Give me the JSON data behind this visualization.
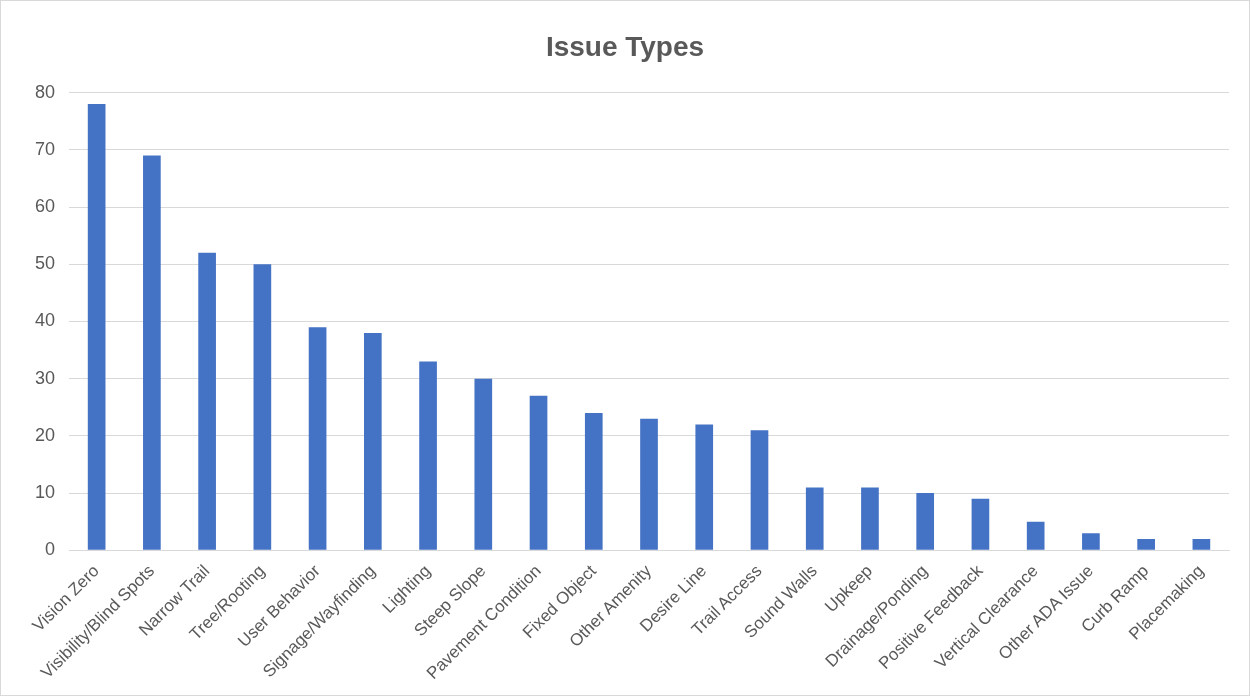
{
  "chart_data": {
    "type": "bar",
    "title": "Issue Types",
    "categories": [
      "Vision Zero",
      "Visibility/Blind Spots",
      "Narrow Trail",
      "Tree/Rooting",
      "User Behavior",
      "Signage/Wayfinding",
      "Lighting",
      "Steep Slope",
      "Pavement Condition",
      "Fixed Object",
      "Other Amenity",
      "Desire Line",
      "Trail Access",
      "Sound Walls",
      "Upkeep",
      "Drainage/Ponding",
      "Positive Feedback",
      "Vertical Clearance",
      "Other ADA Issue",
      "Curb Ramp",
      "Placemaking"
    ],
    "values": [
      78,
      69,
      52,
      50,
      39,
      38,
      33,
      30,
      27,
      24,
      23,
      22,
      21,
      11,
      11,
      10,
      9,
      5,
      3,
      2,
      2
    ],
    "color": "#4472c4",
    "ylim": [
      0,
      80
    ],
    "yticks": [
      0,
      10,
      20,
      30,
      40,
      50,
      60,
      70,
      80
    ],
    "grid": "y"
  }
}
